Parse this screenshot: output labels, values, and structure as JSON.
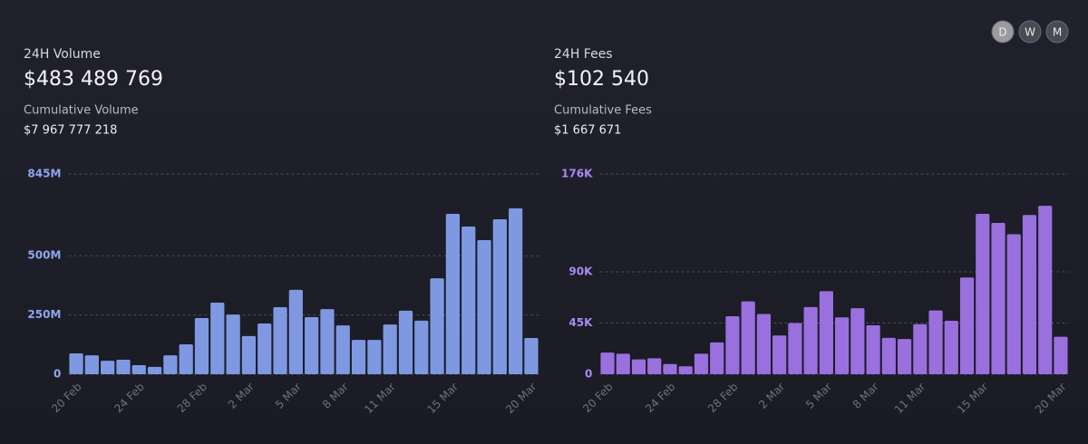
{
  "controls": [
    "D",
    "W",
    "M"
  ],
  "chart_data": [
    {
      "type": "bar",
      "title": "24H Volume",
      "headline": "$483 489 769",
      "subtitle": "Cumulative Volume",
      "subtitle_value": "$7 967 777 218",
      "categories": [
        "20 Feb",
        null,
        null,
        null,
        "24 Feb",
        null,
        null,
        null,
        "28 Feb",
        null,
        null,
        "2 Mar",
        null,
        null,
        "5 Mar",
        null,
        null,
        "8 Mar",
        null,
        null,
        "11 Mar",
        null,
        null,
        null,
        "15 Mar",
        null,
        null,
        null,
        null,
        "20 Mar"
      ],
      "values": [
        88,
        80,
        57,
        61,
        38,
        31,
        80,
        126,
        237,
        302,
        252,
        161,
        214,
        283,
        356,
        241,
        275,
        206,
        145,
        145,
        210,
        268,
        226,
        405,
        677,
        623,
        566,
        654,
        700,
        153
      ],
      "color": "#7f98e2",
      "tick_color": "#8fa6ee",
      "ylim": [
        0,
        845
      ],
      "yticks": [
        0,
        {
          "value": 250,
          "label": "250M"
        },
        {
          "value": 500,
          "label": "500M"
        },
        {
          "value": 845,
          "label": "845M"
        }
      ],
      "grid": true
    },
    {
      "type": "bar",
      "title": "24H Fees",
      "headline": "$102 540",
      "subtitle": "Cumulative Fees",
      "subtitle_value": "$1 667 671",
      "categories": [
        "20 Feb",
        null,
        null,
        null,
        "24 Feb",
        null,
        null,
        null,
        "28 Feb",
        null,
        null,
        "2 Mar",
        null,
        null,
        "5 Mar",
        null,
        null,
        "8 Mar",
        null,
        null,
        "11 Mar",
        null,
        null,
        null,
        "15 Mar",
        null,
        null,
        null,
        null,
        "20 Mar"
      ],
      "values": [
        19,
        18,
        13,
        14,
        9,
        7,
        18,
        28,
        51,
        64,
        53,
        34,
        45,
        59,
        73,
        50,
        58,
        43,
        32,
        31,
        44,
        56,
        47,
        85,
        141,
        133,
        123,
        140,
        148,
        33
      ],
      "color": "#9a70de",
      "tick_color": "#a98af0",
      "ylim": [
        0,
        176
      ],
      "yticks": [
        0,
        {
          "value": 45,
          "label": "45K"
        },
        {
          "value": 90,
          "label": "90K"
        },
        {
          "value": 176,
          "label": "176K"
        }
      ],
      "grid": true
    }
  ]
}
